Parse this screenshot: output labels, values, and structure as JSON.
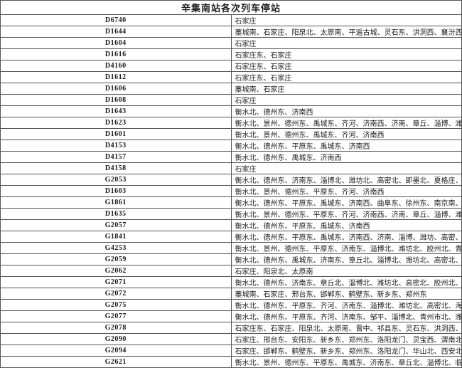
{
  "title": "辛集南站各次列车停站",
  "table": {
    "columns": [
      "train_number",
      "stops"
    ],
    "rows": [
      {
        "train": "D6740",
        "stops": "石家庄"
      },
      {
        "train": "D1644",
        "stops": "藁城南、石家庄、阳泉北、太原南、平遥古城、灵石东、洪洞西、襄汾西、闻喜西、运城北"
      },
      {
        "train": "D1604",
        "stops": "石家庄"
      },
      {
        "train": "D1616",
        "stops": "石家庄东、石家庄"
      },
      {
        "train": "D4160",
        "stops": "石家庄东、石家庄"
      },
      {
        "train": "D1612",
        "stops": "石家庄东、石家庄"
      },
      {
        "train": "D1606",
        "stops": "藁城南、石家庄"
      },
      {
        "train": "D1608",
        "stops": "石家庄"
      },
      {
        "train": "D1643",
        "stops": "衡水北、德州东、济南西"
      },
      {
        "train": "D1623",
        "stops": "衡水北、景州、德州东、禹城东、齐河、济南西、济南、章丘、淄博、潍坊、即墨北、夏格庄、海阳北、烟台南、牟平、威海"
      },
      {
        "train": "D1601",
        "stops": "衡水北、景州、德州东、禹城东、齐河、济南西"
      },
      {
        "train": "D4153",
        "stops": "衡水北、德州东、平原东、禹城东、济南西"
      },
      {
        "train": "D4157",
        "stops": "衡水北、德州东、禹城东、济南西"
      },
      {
        "train": "D4158",
        "stops": "石家庄"
      },
      {
        "train": "G2053",
        "stops": "衡水北、德州东、济南东、淄博北、潍坊北、高密北、即墨北、夏格庄、莱阳、烟台南、牟平、威海"
      },
      {
        "train": "D1603",
        "stops": "衡水北、景州、德州东、平原东、齐河、济南西"
      },
      {
        "train": "G1861",
        "stops": "衡水北、德州东、平原东、禹城东、济南西、曲阜东、徐州东、南京南、句容西、宜兴、长兴、德清、杭州东"
      },
      {
        "train": "D1635",
        "stops": "衡水北、景州、德州东、平原东、齐河、济南西、济南、章丘、淄博、潍坊、青岛北、青岛"
      },
      {
        "train": "G2057",
        "stops": "衡水北、德州东、平原东、禹城东、济南西"
      },
      {
        "train": "G1841",
        "stops": "衡水北、德州东、平原东、禹城东、济南西、济南、淄博、潍坊、高密、青岛北"
      },
      {
        "train": "G4253",
        "stops": "衡水北、景州、德州东、平原东、济南东、淄博北、潍坊北、胶州北、青岛北"
      },
      {
        "train": "G2059",
        "stops": "衡水北、德州东、禹城东、济南东、章丘北、淄博北、潍坊北、高密北、青岛西、董家口、日照西、赣榆、连云港、响水县、滨海港、阜宁东、"
      },
      {
        "train": "G2062",
        "stops": "石家庄、阳泉北、太原南"
      },
      {
        "train": "G2071",
        "stops": "衡水北、德州东、济南东、章丘北、淄博北、潍坊北、高密北、胶州北、青岛北"
      },
      {
        "train": "G2072",
        "stops": "藁城南、石家庄、邢台东、邯郸东、鹤壁东、新乡东、郑州东"
      },
      {
        "train": "G2075",
        "stops": "衡水北、德州东、平原东、齐河、济南东、淄博北、潍坊北、高密北、海阳北、烟台南、牟平、威海"
      },
      {
        "train": "G2077",
        "stops": "衡水北、德州东、平原东、齐河、济南东、邹平、淄博北、青州市北、潍坊北、莱阳、海阳北、桃村北、烟台南、威海"
      },
      {
        "train": "G2078",
        "stops": "石家庄东、石家庄、阳泉北、太原南、晋中、祁县东、灵石东、洪洞西、临汾西、侯马西、运城北"
      },
      {
        "train": "G2090",
        "stops": "石家庄、邢台东、安阳东、新乡东、郑州东、洛阳龙门、灵宝西、渭南北、西安北、鄠邑、洋县西、汉中、广元、江油、绵阳、成都东"
      },
      {
        "train": "G2094",
        "stops": "石家庄、邯郸东、鹤壁东、新乡东、郑州东、洛阳龙门、华山北、西安北、咸阳秦都、杨陵南、岐山、宝鸡南、天水南、秦安、兰州西"
      },
      {
        "train": "G2621",
        "stops": "衡水北、景州、德州东、平原东、禹城东、济南东、章丘北、淄博北、临淄北、青州市北、潍坊北、高密北、青岛北"
      }
    ]
  }
}
